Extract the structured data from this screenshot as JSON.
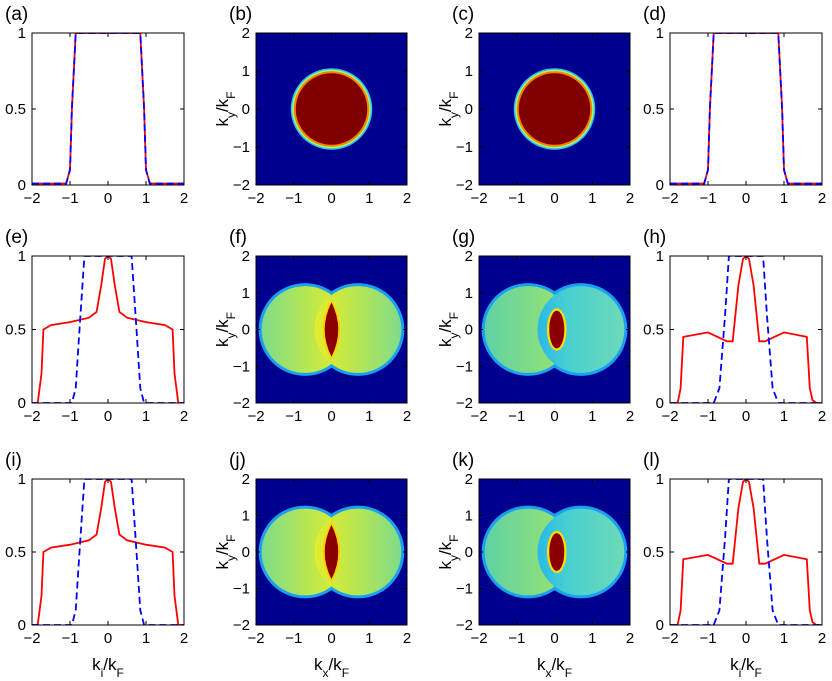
{
  "figure": {
    "xlabel_line": "k_i/k_F",
    "xlabel_map": "k_x/k_F",
    "ylabel_map": "k_y/k_F",
    "colors": {
      "solid": "#ff0000",
      "dashed": "#0000ff",
      "map_bg": "#00008f",
      "frame": "#000000"
    }
  },
  "chart_data": [
    {
      "type": "line",
      "panel_label": "(a)",
      "xlim": [
        -2,
        2
      ],
      "ylim": [
        0,
        1
      ],
      "xticks": [
        "-2",
        "-1",
        "0",
        "1",
        "2"
      ],
      "yticks": [
        "0",
        "0.5",
        "1"
      ],
      "series": [
        {
          "name": "solid",
          "style": "solid",
          "color": "#ff0000",
          "x": [
            -2,
            -1.1,
            -1.0,
            -0.95,
            -0.85,
            0.85,
            0.95,
            1.0,
            1.1,
            2
          ],
          "y": [
            0.01,
            0.01,
            0.1,
            0.5,
            1,
            1,
            0.5,
            0.1,
            0.01,
            0.01
          ]
        },
        {
          "name": "dashed",
          "style": "dashed",
          "color": "#0000ff",
          "x": [
            -2,
            -1.1,
            -1.0,
            -0.95,
            -0.85,
            0.85,
            0.95,
            1.0,
            1.1,
            2
          ],
          "y": [
            0.01,
            0.01,
            0.1,
            0.5,
            1,
            1,
            0.5,
            0.1,
            0.01,
            0.01
          ]
        }
      ]
    },
    {
      "type": "heatmap",
      "panel_label": "(b)",
      "xlim": [
        -2,
        2
      ],
      "ylim": [
        -2,
        2
      ],
      "xticks": [
        "-2",
        "-1",
        "0",
        "1",
        "2"
      ],
      "yticks": [
        "-2",
        "-1",
        "0",
        "1",
        "2"
      ],
      "pattern": "disk",
      "disk_radius": 1.0
    },
    {
      "type": "heatmap",
      "panel_label": "(c)",
      "xlim": [
        -2,
        2
      ],
      "ylim": [
        -2,
        2
      ],
      "xticks": [
        "-2",
        "-1",
        "0",
        "1",
        "2"
      ],
      "yticks": [
        "-2",
        "-1",
        "0",
        "1",
        "2"
      ],
      "pattern": "disk",
      "disk_radius": 1.0
    },
    {
      "type": "line",
      "panel_label": "(d)",
      "xlim": [
        -2,
        2
      ],
      "ylim": [
        0,
        1
      ],
      "xticks": [
        "-2",
        "-1",
        "0",
        "1",
        "2"
      ],
      "yticks": [
        "0",
        "0.5",
        "1"
      ],
      "series": [
        {
          "name": "solid",
          "style": "solid",
          "color": "#ff0000",
          "x": [
            -2,
            -1.1,
            -1.0,
            -0.95,
            -0.85,
            0.85,
            0.95,
            1.0,
            1.1,
            2
          ],
          "y": [
            0.01,
            0.01,
            0.1,
            0.5,
            1,
            1,
            0.5,
            0.1,
            0.01,
            0.01
          ]
        },
        {
          "name": "dashed",
          "style": "dashed",
          "color": "#0000ff",
          "x": [
            -2,
            -1.1,
            -1.0,
            -0.95,
            -0.85,
            0.85,
            0.95,
            1.0,
            1.1,
            2
          ],
          "y": [
            0.01,
            0.01,
            0.1,
            0.5,
            1,
            1,
            0.5,
            0.1,
            0.01,
            0.01
          ]
        }
      ]
    },
    {
      "type": "line",
      "panel_label": "(e)",
      "xlim": [
        -2,
        2
      ],
      "ylim": [
        0,
        1
      ],
      "xticks": [
        "-2",
        "-1",
        "0",
        "1",
        "2"
      ],
      "yticks": [
        "0",
        "0.5",
        "1"
      ],
      "series": [
        {
          "name": "solid",
          "style": "solid",
          "color": "#ff0000",
          "x": [
            -2,
            -1.85,
            -1.75,
            -1.7,
            -1.5,
            -1.0,
            -0.5,
            -0.3,
            -0.18,
            -0.08,
            0,
            0.08,
            0.18,
            0.3,
            0.5,
            1.0,
            1.5,
            1.7,
            1.75,
            1.85,
            2
          ],
          "y": [
            0,
            0,
            0.2,
            0.5,
            0.53,
            0.55,
            0.58,
            0.62,
            0.8,
            0.98,
            1,
            0.98,
            0.8,
            0.62,
            0.58,
            0.55,
            0.53,
            0.5,
            0.2,
            0,
            0
          ]
        },
        {
          "name": "dashed",
          "style": "dashed",
          "color": "#0000ff",
          "x": [
            -2,
            -0.95,
            -0.85,
            -0.75,
            -0.62,
            0.62,
            0.75,
            0.85,
            0.95,
            2
          ],
          "y": [
            0,
            0,
            0.1,
            0.5,
            1,
            1,
            0.5,
            0.1,
            0,
            0
          ]
        }
      ]
    },
    {
      "type": "heatmap",
      "panel_label": "(f)",
      "xlim": [
        -2,
        2
      ],
      "ylim": [
        -2,
        2
      ],
      "xticks": [
        "-2",
        "-1",
        "0",
        "1",
        "2"
      ],
      "yticks": [
        "-2",
        "-1",
        "0",
        "1",
        "2"
      ],
      "pattern": "two-lobes",
      "lobe_center": 0.7,
      "lobe_radius": 1.15,
      "core": "lens",
      "symmetric": true
    },
    {
      "type": "heatmap",
      "panel_label": "(g)",
      "xlim": [
        -2,
        2
      ],
      "ylim": [
        -2,
        2
      ],
      "xticks": [
        "-2",
        "-1",
        "0",
        "1",
        "2"
      ],
      "yticks": [
        "-2",
        "-1",
        "0",
        "1",
        "2"
      ],
      "pattern": "two-lobes",
      "lobe_center": 0.7,
      "lobe_radius": 1.15,
      "core": "ellipse",
      "symmetric": false
    },
    {
      "type": "line",
      "panel_label": "(h)",
      "xlim": [
        -2,
        2
      ],
      "ylim": [
        0,
        1
      ],
      "xticks": [
        "-2",
        "-1",
        "0",
        "1",
        "2"
      ],
      "yticks": [
        "0",
        "0.5",
        "1"
      ],
      "series": [
        {
          "name": "solid",
          "style": "solid",
          "color": "#ff0000",
          "x": [
            -2,
            -1.8,
            -1.72,
            -1.65,
            -1.0,
            -0.5,
            -0.35,
            -0.2,
            -0.08,
            0,
            0.08,
            0.2,
            0.35,
            0.5,
            1.0,
            1.6,
            1.68,
            1.75,
            1.85,
            2
          ],
          "y": [
            0,
            0,
            0.1,
            0.45,
            0.48,
            0.42,
            0.42,
            0.8,
            0.98,
            1,
            0.98,
            0.8,
            0.42,
            0.42,
            0.48,
            0.45,
            0.1,
            0.02,
            0,
            0
          ]
        },
        {
          "name": "dashed",
          "style": "dashed",
          "color": "#0000ff",
          "x": [
            -2,
            -0.85,
            -0.7,
            -0.55,
            -0.45,
            0.45,
            0.55,
            0.7,
            0.85,
            2
          ],
          "y": [
            0,
            0,
            0.1,
            0.6,
            1,
            1,
            0.6,
            0.1,
            0,
            0
          ]
        }
      ]
    },
    {
      "type": "line",
      "panel_label": "(i)",
      "xlim": [
        -2,
        2
      ],
      "ylim": [
        0,
        1
      ],
      "xticks": [
        "-2",
        "-1",
        "0",
        "1",
        "2"
      ],
      "yticks": [
        "0",
        "0.5",
        "1"
      ],
      "series": [
        {
          "name": "solid",
          "style": "solid",
          "color": "#ff0000",
          "x": [
            -2,
            -1.85,
            -1.75,
            -1.7,
            -1.5,
            -1.0,
            -0.5,
            -0.3,
            -0.18,
            -0.08,
            0,
            0.08,
            0.18,
            0.3,
            0.5,
            1.0,
            1.5,
            1.7,
            1.75,
            1.85,
            2
          ],
          "y": [
            0,
            0,
            0.2,
            0.5,
            0.53,
            0.55,
            0.58,
            0.62,
            0.8,
            0.98,
            1,
            0.98,
            0.8,
            0.62,
            0.58,
            0.55,
            0.53,
            0.5,
            0.2,
            0,
            0
          ]
        },
        {
          "name": "dashed",
          "style": "dashed",
          "color": "#0000ff",
          "x": [
            -2,
            -0.95,
            -0.85,
            -0.75,
            -0.62,
            0.62,
            0.75,
            0.85,
            0.95,
            2
          ],
          "y": [
            0,
            0,
            0.1,
            0.5,
            1,
            1,
            0.5,
            0.1,
            0,
            0
          ]
        }
      ]
    },
    {
      "type": "heatmap",
      "panel_label": "(j)",
      "xlim": [
        -2,
        2
      ],
      "ylim": [
        -2,
        2
      ],
      "xticks": [
        "-2",
        "-1",
        "0",
        "1",
        "2"
      ],
      "yticks": [
        "-2",
        "-1",
        "0",
        "1",
        "2"
      ],
      "pattern": "two-lobes",
      "lobe_center": 0.7,
      "lobe_radius": 1.15,
      "core": "lens",
      "symmetric": true
    },
    {
      "type": "heatmap",
      "panel_label": "(k)",
      "xlim": [
        -2,
        2
      ],
      "ylim": [
        -2,
        2
      ],
      "xticks": [
        "-2",
        "-1",
        "0",
        "1",
        "2"
      ],
      "yticks": [
        "-2",
        "-1",
        "0",
        "1",
        "2"
      ],
      "pattern": "two-lobes",
      "lobe_center": 0.7,
      "lobe_radius": 1.15,
      "core": "ellipse",
      "symmetric": false
    },
    {
      "type": "line",
      "panel_label": "(l)",
      "xlim": [
        -2,
        2
      ],
      "ylim": [
        0,
        1
      ],
      "xticks": [
        "-2",
        "-1",
        "0",
        "1",
        "2"
      ],
      "yticks": [
        "0",
        "0.5",
        "1"
      ],
      "series": [
        {
          "name": "solid",
          "style": "solid",
          "color": "#ff0000",
          "x": [
            -2,
            -1.8,
            -1.72,
            -1.65,
            -1.0,
            -0.5,
            -0.35,
            -0.2,
            -0.08,
            0,
            0.08,
            0.2,
            0.35,
            0.5,
            1.0,
            1.6,
            1.68,
            1.75,
            1.85,
            2
          ],
          "y": [
            0,
            0,
            0.1,
            0.45,
            0.48,
            0.42,
            0.42,
            0.8,
            0.98,
            1,
            0.98,
            0.8,
            0.42,
            0.42,
            0.48,
            0.45,
            0.1,
            0.02,
            0,
            0
          ]
        },
        {
          "name": "dashed",
          "style": "dashed",
          "color": "#0000ff",
          "x": [
            -2,
            -0.85,
            -0.7,
            -0.55,
            -0.45,
            0.45,
            0.55,
            0.7,
            0.85,
            2
          ],
          "y": [
            0,
            0,
            0.1,
            0.6,
            1,
            1,
            0.6,
            0.1,
            0,
            0
          ]
        }
      ]
    }
  ]
}
